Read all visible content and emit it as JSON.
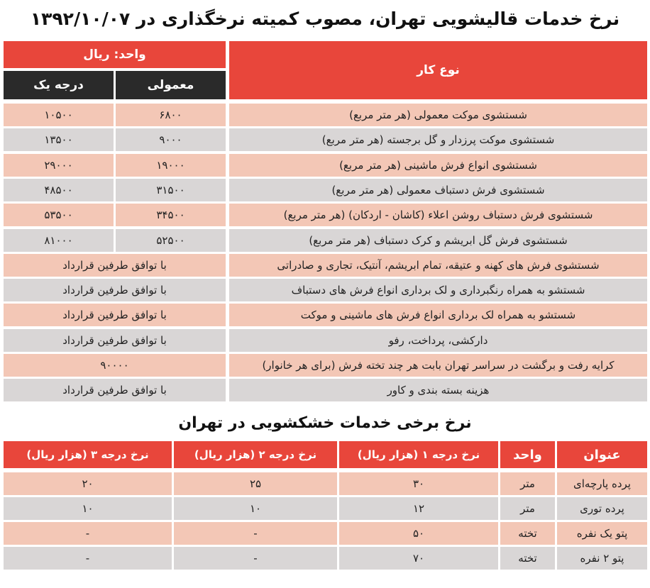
{
  "title": "نرخ خدمات قالیشویی تهران، مصوب کمیته نرخگذاری در ۱۳۹۲/۱۰/۰۷",
  "table1": {
    "type_header": "نوع کار",
    "unit_header": "واحد: ریال",
    "columns": [
      "معمولی",
      "درجه یک"
    ],
    "rows": [
      {
        "service": "شستشوی موکت معمولی (هر متر مربع)",
        "regular": "۶۸۰۰",
        "grade1": "۱۰۵۰۰"
      },
      {
        "service": "شستشوی موکت پرزدار و گل برجسته (هر متر مربع)",
        "regular": "۹۰۰۰",
        "grade1": "۱۳۵۰۰"
      },
      {
        "service": "شستشوی انواع فرش ماشینی (هر متر مربع)",
        "regular": "۱۹۰۰۰",
        "grade1": "۲۹۰۰۰"
      },
      {
        "service": "شستشوی فرش دستباف معمولی (هر متر مربع)",
        "regular": "۳۱۵۰۰",
        "grade1": "۴۸۵۰۰"
      },
      {
        "service": "شستشوی فرش دستباف روشن اعلاء (کاشان - اردکان) (هر متر مربع)",
        "regular": "۳۴۵۰۰",
        "grade1": "۵۳۵۰۰"
      },
      {
        "service": "شستشوی فرش گل ابریشم و کرک دستباف (هر متر مربع)",
        "regular": "۵۲۵۰۰",
        "grade1": "۸۱۰۰۰"
      },
      {
        "service": "شستشوی فرش های کهنه و عتیقه، تمام ابریشم، آنتیک، تجاری و صادراتی",
        "price": "با توافق طرفین قرارداد"
      },
      {
        "service": "شستشو به همراه رنگبرداری و لک برداری انواع فرش های دستباف",
        "price": "با توافق طرفین قرارداد"
      },
      {
        "service": "شستشو به همراه لک برداری انواع فرش های ماشینی و موکت",
        "price": "با توافق طرفین قرارداد"
      },
      {
        "service": "دارکشی، پرداخت، رفو",
        "price": "با توافق طرفین قرارداد"
      },
      {
        "service": "کرایه رفت و برگشت در سراسر تهران بابت هر چند تخته فرش (برای هر خانوار)",
        "price": "۹۰۰۰۰"
      },
      {
        "service": "هزینه بسته بندی و کاور",
        "price": "با توافق طرفین قرارداد"
      }
    ]
  },
  "subtitle": "نرخ برخی خدمات خشکشویی در تهران",
  "table2": {
    "headers": [
      "عنوان",
      "واحد",
      "نرخ درجه ۱ (هزار ریال)",
      "نرخ درجه ۲ (هزار ریال)",
      "نرخ درجه ۳ (هزار ریال)"
    ],
    "rows": [
      [
        "پرده پارچه‌ای",
        "متر",
        "۳۰",
        "۲۵",
        "۲۰"
      ],
      [
        "پرده توری",
        "متر",
        "۱۲",
        "۱۰",
        "۱۰"
      ],
      [
        "پتو یک نفره",
        "تخته",
        "۵۰",
        "-",
        "-"
      ],
      [
        "پتو ۲ نفره",
        "تخته",
        "۷۰",
        "-",
        "-"
      ]
    ]
  }
}
